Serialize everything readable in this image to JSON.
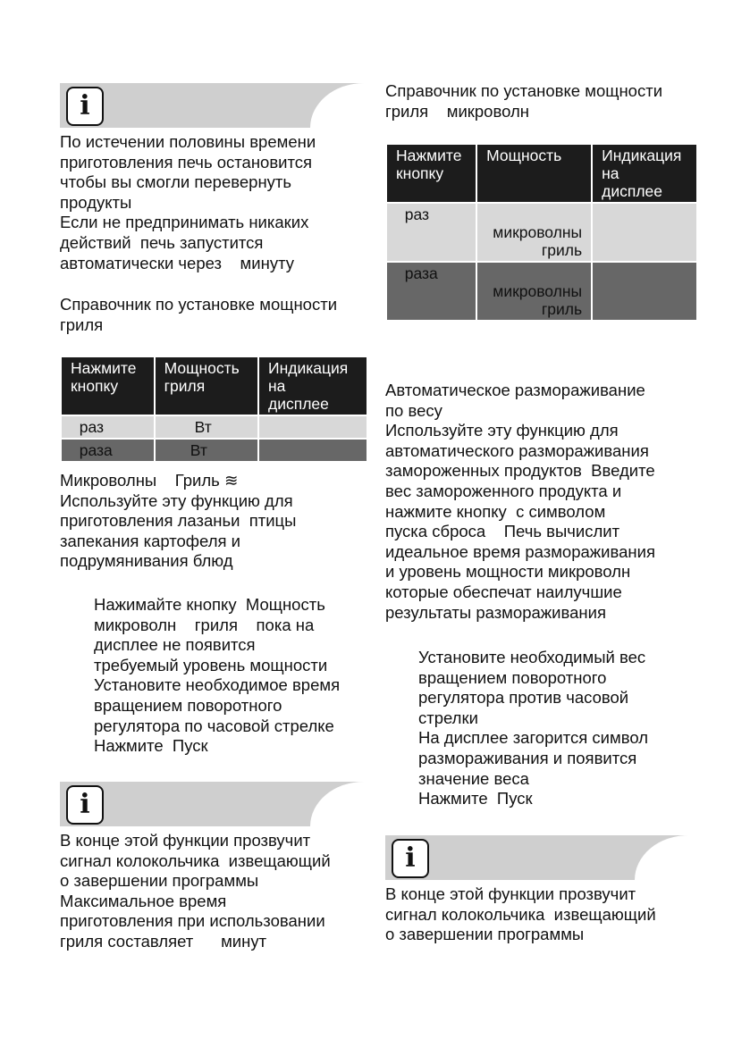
{
  "left": {
    "note1": [
      "По истечении половины времени",
      "приготовления печь остановится",
      "чтобы вы смогли перевернуть",
      "продукты",
      "Если не предпринимать никаких",
      "действий  печь запустится",
      "автоматически через    минуту"
    ],
    "grill_title": [
      "Справочник по установке мощности",
      "гриля"
    ],
    "table1": {
      "headers": [
        "Нажмите\nкнопку",
        "Мощность\nгриля",
        "Индикация\nна\nдисплее"
      ],
      "rows": [
        [
          "  раз",
          "       Вт",
          ""
        ],
        [
          "  раза",
          "      Вт",
          ""
        ]
      ]
    },
    "combo_intro": [
      "Микроволны    Гриль ≋",
      "Используйте эту функцию для",
      "приготовления лазаньи  птицы",
      "запекания картофеля и",
      "подрумянивания блюд"
    ],
    "combo_steps": [
      "Нажимайте кнопку  Мощность",
      "микроволн    гриля    пока на",
      "дисплее не появится",
      "требуемый уровень мощности",
      "Установите необходимое время",
      "вращением поворотного",
      "регулятора по часовой стрелке",
      "Нажмите  Пуск"
    ],
    "note2": [
      "В конце этой функции прозвучит",
      "сигнал колокольчика  извещающий",
      "о завершении программы",
      "Максимальное время",
      "приготовления при использовании",
      "гриля составляет      минут"
    ]
  },
  "right": {
    "combo_title": [
      "Справочник по установке мощности",
      "гриля    микроволн"
    ],
    "table2": {
      "headers": [
        "Нажмите\nкнопку",
        "Мощность",
        "Индикация\nна\nдисплее"
      ],
      "rows": [
        [
          "  раз",
          "\nмикроволны\nгриль",
          ""
        ],
        [
          "  раза",
          "\nмикроволны\nгриль",
          ""
        ]
      ]
    },
    "defrost_intro": [
      "Автоматическое размораживание",
      "по весу",
      "Используйте эту функцию для",
      "автоматического размораживания",
      "замороженных продуктов  Введите",
      "вес замороженного продукта и",
      "нажмите кнопку  с символом",
      "пуска сброса    Печь вычислит",
      "идеальное время размораживания",
      "и уровень мощности микроволн",
      "которые обеспечат наилучшие",
      "результаты размораживания"
    ],
    "defrost_steps": [
      "Установите необходимый вес",
      "вращением поворотного",
      "регулятора против часовой",
      "стрелки",
      "На дисплее загорится символ",
      "размораживания и появится",
      "значение веса",
      "Нажмите  Пуск"
    ],
    "note3": [
      "В конце этой функции прозвучит",
      "сигнал колокольчика  извещающий",
      "о завершении программы"
    ]
  },
  "icons": {
    "info": "info-icon",
    "grill": "grill-icon"
  },
  "colors": {
    "info_band": "#cfcfcf",
    "header": "#1c1c1c",
    "row_light": "#d8d8d8",
    "row_dark": "#676767"
  }
}
